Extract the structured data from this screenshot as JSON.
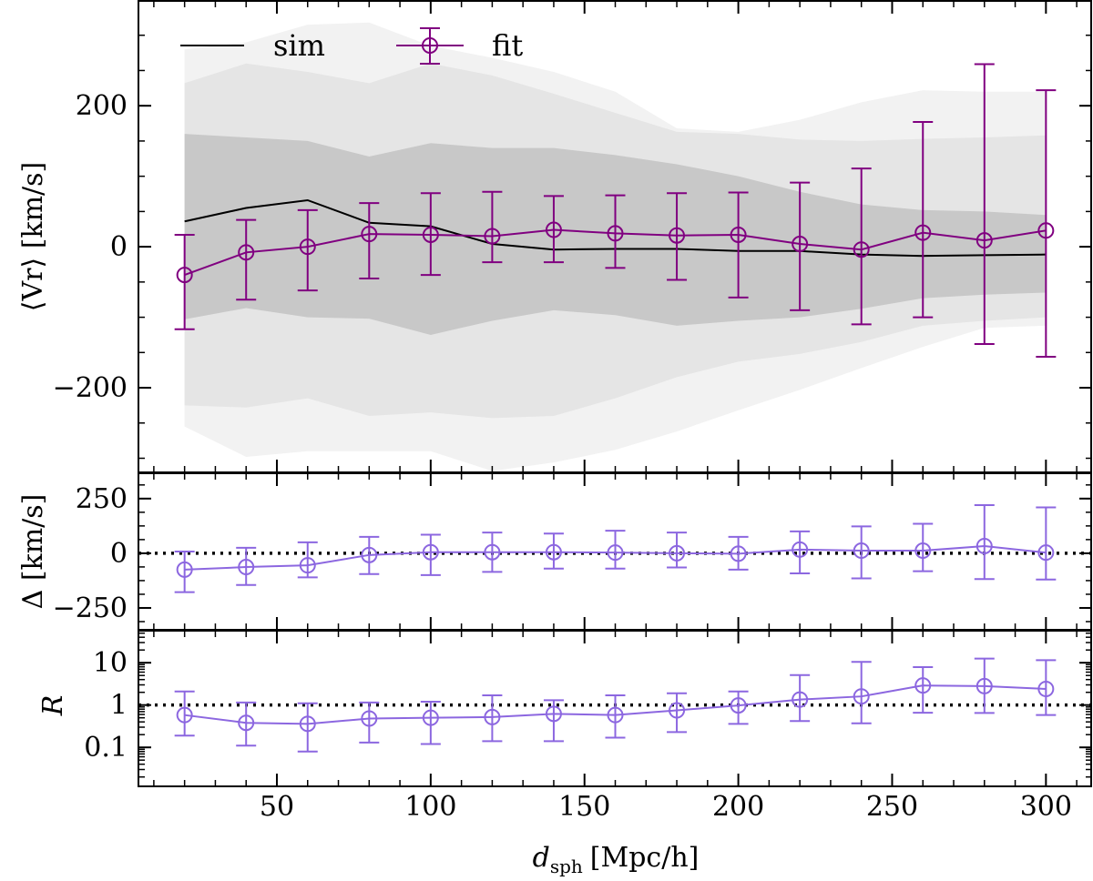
{
  "figure": {
    "xlabel_main": "d",
    "xlabel_sub": "sph",
    "xlabel_unit": "[Mpc/h]",
    "xticks": [
      50,
      100,
      150,
      200,
      250,
      300
    ],
    "xlim": [
      5,
      315
    ]
  },
  "chart_data": [
    {
      "id": "top",
      "type": "line",
      "ylabel": "⟨Vr⟩ [km/s]",
      "ylim": [
        -320,
        350
      ],
      "yticks": [
        -200,
        0,
        200
      ],
      "yticklabels": [
        "−200",
        "0",
        "200"
      ],
      "legend": {
        "placement": "top-left",
        "entries": [
          "sim",
          "fit"
        ]
      },
      "bands": [
        {
          "name": "outer",
          "color": "#f2f2f2",
          "x": [
            20,
            40,
            60,
            80,
            100,
            120,
            140,
            160,
            180,
            200,
            220,
            240,
            260,
            280,
            300
          ],
          "upper": [
            280,
            290,
            315,
            318,
            285,
            268,
            248,
            220,
            168,
            163,
            180,
            205,
            222,
            220,
            220
          ],
          "lower": [
            -255,
            -298,
            -290,
            -290,
            -290,
            -318,
            -306,
            -288,
            -262,
            -232,
            -203,
            -172,
            -142,
            -115,
            -112
          ]
        },
        {
          "name": "middle",
          "color": "#e5e5e5",
          "x": [
            20,
            40,
            60,
            80,
            100,
            120,
            140,
            160,
            180,
            200,
            220,
            240,
            260,
            280,
            300
          ],
          "upper": [
            232,
            260,
            248,
            232,
            260,
            243,
            217,
            190,
            163,
            160,
            152,
            150,
            153,
            155,
            158
          ],
          "lower": [
            -225,
            -228,
            -215,
            -240,
            -235,
            -243,
            -240,
            -215,
            -185,
            -163,
            -152,
            -135,
            -112,
            -105,
            -100
          ]
        },
        {
          "name": "inner",
          "color": "#c8c8c8",
          "x": [
            20,
            40,
            60,
            80,
            100,
            120,
            140,
            160,
            180,
            200,
            220,
            240,
            260,
            280,
            300
          ],
          "upper": [
            160,
            155,
            150,
            128,
            147,
            140,
            140,
            130,
            117,
            100,
            78,
            60,
            52,
            50,
            45
          ],
          "lower": [
            -103,
            -87,
            -100,
            -102,
            -125,
            -105,
            -90,
            -97,
            -112,
            -105,
            -100,
            -88,
            -73,
            -68,
            -65
          ]
        }
      ],
      "series": [
        {
          "name": "sim",
          "kind": "line",
          "color": "#000000",
          "x": [
            20,
            40,
            60,
            80,
            100,
            120,
            140,
            160,
            180,
            200,
            220,
            240,
            260,
            280,
            300
          ],
          "y": [
            36,
            55,
            66,
            34,
            29,
            4,
            -4,
            -3,
            -3,
            -6,
            -6,
            -11,
            -13,
            -12,
            -11
          ]
        },
        {
          "name": "fit",
          "kind": "errorbar",
          "color": "#800080",
          "x": [
            20,
            40,
            60,
            80,
            100,
            120,
            140,
            160,
            180,
            200,
            220,
            240,
            260,
            280,
            300
          ],
          "y": [
            -40,
            -8,
            0,
            18,
            17,
            15,
            24,
            19,
            16,
            17,
            4,
            -4,
            20,
            9,
            23
          ],
          "ylo": [
            -117,
            -75,
            -62,
            -45,
            -40,
            -22,
            -22,
            -30,
            -47,
            -72,
            -90,
            -110,
            -100,
            -138,
            -156
          ],
          "yhi": [
            17,
            38,
            52,
            62,
            76,
            78,
            72,
            73,
            76,
            77,
            91,
            111,
            177,
            259,
            222
          ]
        }
      ]
    },
    {
      "id": "middle",
      "type": "line",
      "ylabel": "Δ [km/s]",
      "ylim": [
        -350,
        370
      ],
      "yticks": [
        -250,
        0,
        250
      ],
      "yticklabels": [
        "−250",
        "0",
        "250"
      ],
      "reference_line": 0,
      "series": [
        {
          "name": "Δ",
          "kind": "errorbar",
          "color": "#8c67e0",
          "x": [
            20,
            40,
            60,
            80,
            100,
            120,
            140,
            160,
            180,
            200,
            220,
            240,
            260,
            280,
            300
          ],
          "y": [
            -75,
            -63,
            -55,
            -8,
            5,
            5,
            5,
            3,
            0,
            -2,
            17,
            12,
            12,
            33,
            3
          ],
          "ylo": [
            -178,
            -145,
            -110,
            -95,
            -100,
            -85,
            -70,
            -70,
            -65,
            -75,
            -92,
            -115,
            -82,
            -118,
            -120
          ],
          "yhi": [
            8,
            25,
            50,
            75,
            85,
            95,
            90,
            103,
            95,
            75,
            100,
            123,
            135,
            220,
            210
          ]
        }
      ]
    },
    {
      "id": "bottom",
      "type": "line",
      "scale": "log",
      "ylabel": "R",
      "ylim": [
        0.012,
        60
      ],
      "yticks": [
        0.1,
        1,
        10
      ],
      "yticklabels": [
        "0.1",
        "1",
        "10"
      ],
      "reference_line": 1,
      "series": [
        {
          "name": "R",
          "kind": "errorbar",
          "color": "#8c67e0",
          "x": [
            20,
            40,
            60,
            80,
            100,
            120,
            140,
            160,
            180,
            200,
            220,
            240,
            260,
            280,
            300
          ],
          "y": [
            0.58,
            0.38,
            0.36,
            0.48,
            0.5,
            0.52,
            0.62,
            0.58,
            0.75,
            0.98,
            1.35,
            1.6,
            2.9,
            2.8,
            2.4
          ],
          "ylo": [
            0.19,
            0.11,
            0.08,
            0.13,
            0.12,
            0.14,
            0.14,
            0.17,
            0.23,
            0.36,
            0.42,
            0.37,
            0.66,
            0.65,
            0.58
          ],
          "yhi": [
            2.1,
            1.15,
            1.1,
            1.15,
            1.2,
            1.7,
            1.3,
            1.7,
            1.9,
            2.1,
            5.1,
            10.5,
            7.9,
            12.5,
            11.5
          ]
        }
      ]
    }
  ]
}
